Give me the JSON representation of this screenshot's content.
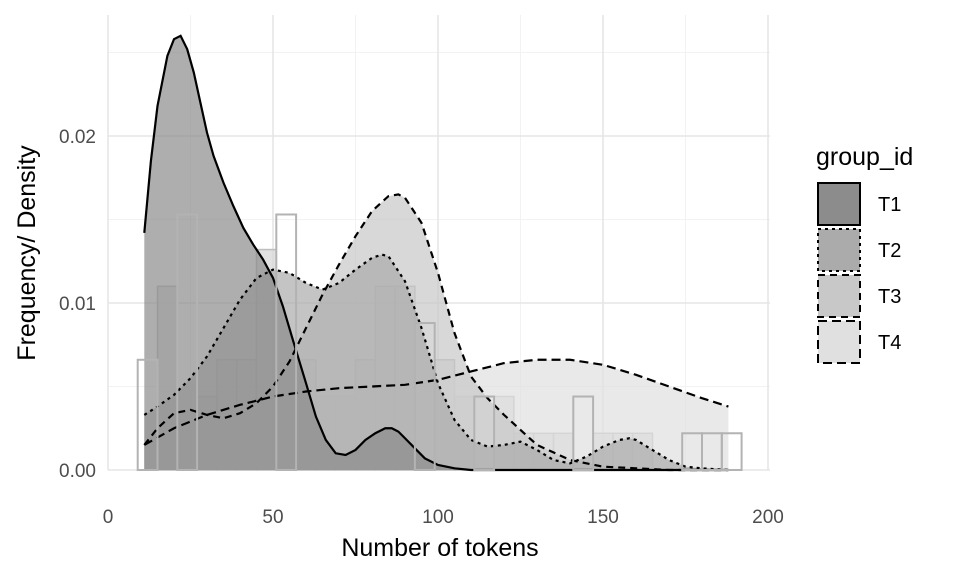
{
  "chart_data": {
    "type": "histogram-density",
    "xlabel": "Number of tokens",
    "ylabel": "Frequency/ Density",
    "xlim": [
      0,
      200
    ],
    "ylim": [
      0,
      0.0265
    ],
    "x_ticks": [
      0,
      50,
      100,
      150,
      200
    ],
    "x_tick_labels": [
      "0",
      "50",
      "100",
      "150",
      "200"
    ],
    "y_ticks": [
      0.0,
      0.01,
      0.02
    ],
    "y_tick_labels": [
      "0.00",
      "0.01",
      "0.02"
    ],
    "grid": true,
    "legend": {
      "title": "group_id",
      "placement": "right",
      "entries": [
        {
          "label": "T1",
          "fill": "#8c8c8c",
          "dash": "solid"
        },
        {
          "label": "T2",
          "fill": "#ababab",
          "dash": "dotted"
        },
        {
          "label": "T3",
          "fill": "#c8c8c8",
          "dash": "dashed"
        },
        {
          "label": "T4",
          "fill": "#e0e0e0",
          "dash": "longdash"
        }
      ]
    },
    "histogram": {
      "bin_width": 6,
      "bins": [
        {
          "x0": 9,
          "height": 0.0066
        },
        {
          "x0": 21,
          "height": 0.0153
        },
        {
          "x0": 51,
          "height": 0.0153
        },
        {
          "x0": 93,
          "height": 0.0088
        },
        {
          "x0": 111,
          "height": 0.0044
        },
        {
          "x0": 141,
          "height": 0.0044
        },
        {
          "x0": 174,
          "height": 0.0022
        },
        {
          "x0": 180,
          "height": 0.0022
        },
        {
          "x0": 186,
          "height": 0.0022
        }
      ],
      "fill_bins": [
        {
          "x0": 15,
          "height": 0.011
        },
        {
          "x0": 27,
          "height": 0.0044
        },
        {
          "x0": 33,
          "height": 0.0066
        },
        {
          "x0": 39,
          "height": 0.0066
        },
        {
          "x0": 45,
          "height": 0.0132
        },
        {
          "x0": 57,
          "height": 0.0066
        },
        {
          "x0": 63,
          "height": 0.0044
        },
        {
          "x0": 69,
          "height": 0.0044
        },
        {
          "x0": 75,
          "height": 0.0066
        },
        {
          "x0": 81,
          "height": 0.011
        },
        {
          "x0": 87,
          "height": 0.011
        },
        {
          "x0": 99,
          "height": 0.0066
        },
        {
          "x0": 105,
          "height": 0.0044
        },
        {
          "x0": 117,
          "height": 0.0044
        },
        {
          "x0": 123,
          "height": 0.0022
        },
        {
          "x0": 129,
          "height": 0.0022
        },
        {
          "x0": 135,
          "height": 0.0022
        },
        {
          "x0": 147,
          "height": 0.0022
        },
        {
          "x0": 153,
          "height": 0.0022
        },
        {
          "x0": 159,
          "height": 0.0022
        }
      ]
    },
    "series": [
      {
        "name": "T4",
        "fill": "#e0e0e0",
        "dash": "longdash",
        "x": [
          11,
          20,
          30,
          40,
          50,
          60,
          70,
          80,
          90,
          100,
          110,
          120,
          130,
          140,
          150,
          160,
          170,
          180,
          188
        ],
        "y": [
          0.0015,
          0.0025,
          0.0033,
          0.0039,
          0.0044,
          0.0047,
          0.0049,
          0.005,
          0.0051,
          0.0054,
          0.0059,
          0.0064,
          0.0066,
          0.0066,
          0.0063,
          0.0057,
          0.005,
          0.0043,
          0.0038
        ]
      },
      {
        "name": "T3",
        "fill": "#c8c8c8",
        "dash": "dashed",
        "x": [
          11,
          15,
          20,
          25,
          30,
          35,
          40,
          45,
          50,
          55,
          60,
          65,
          70,
          75,
          80,
          85,
          88,
          90,
          95,
          100,
          105,
          110,
          115,
          120,
          125,
          130,
          140,
          150,
          160,
          170,
          180,
          188
        ],
        "y": [
          0.0015,
          0.0025,
          0.0034,
          0.0036,
          0.0033,
          0.0031,
          0.0034,
          0.004,
          0.005,
          0.0065,
          0.0085,
          0.0105,
          0.0123,
          0.014,
          0.0155,
          0.0164,
          0.0165,
          0.0163,
          0.0148,
          0.0118,
          0.0082,
          0.0056,
          0.0043,
          0.0033,
          0.0024,
          0.0015,
          0.0006,
          0.0002,
          0.0001,
          0,
          0,
          0
        ]
      },
      {
        "name": "T2",
        "fill": "#ababab",
        "dash": "dotted",
        "x": [
          11,
          15,
          20,
          25,
          30,
          35,
          40,
          45,
          50,
          55,
          60,
          65,
          70,
          75,
          80,
          83,
          85,
          90,
          95,
          100,
          105,
          110,
          115,
          120,
          125,
          130,
          135,
          140,
          145,
          150,
          155,
          158,
          160,
          165,
          170,
          175,
          180,
          188
        ],
        "y": [
          0.0033,
          0.0038,
          0.0045,
          0.0055,
          0.0068,
          0.0085,
          0.0102,
          0.0115,
          0.012,
          0.0118,
          0.0112,
          0.0108,
          0.0112,
          0.012,
          0.0127,
          0.0129,
          0.0128,
          0.0113,
          0.0085,
          0.0052,
          0.003,
          0.0018,
          0.0014,
          0.0015,
          0.0017,
          0.0012,
          0.0006,
          0.0004,
          0.0008,
          0.0014,
          0.0018,
          0.0019,
          0.0018,
          0.0012,
          0.0006,
          0.0002,
          0.0001,
          0
        ]
      },
      {
        "name": "T1",
        "fill": "#8c8c8c",
        "dash": "solid",
        "x": [
          11,
          13,
          15,
          18,
          20,
          22,
          24,
          26,
          28,
          30,
          32,
          35,
          38,
          41,
          44,
          47,
          50,
          53,
          56,
          60,
          63,
          66,
          69,
          72,
          75,
          78,
          81,
          84,
          86,
          88,
          90,
          93,
          96,
          100,
          105,
          110,
          120,
          130,
          150,
          170,
          188
        ],
        "y": [
          0.0142,
          0.0185,
          0.0218,
          0.0248,
          0.0258,
          0.026,
          0.0252,
          0.0238,
          0.022,
          0.0202,
          0.0188,
          0.0172,
          0.0158,
          0.0145,
          0.0135,
          0.0126,
          0.0115,
          0.0098,
          0.0078,
          0.0052,
          0.0032,
          0.0018,
          0.001,
          0.0009,
          0.0012,
          0.0018,
          0.0022,
          0.0025,
          0.0025,
          0.0023,
          0.0019,
          0.0013,
          0.0007,
          0.0003,
          0.0001,
          0,
          0,
          0,
          0,
          0,
          0
        ]
      }
    ]
  }
}
